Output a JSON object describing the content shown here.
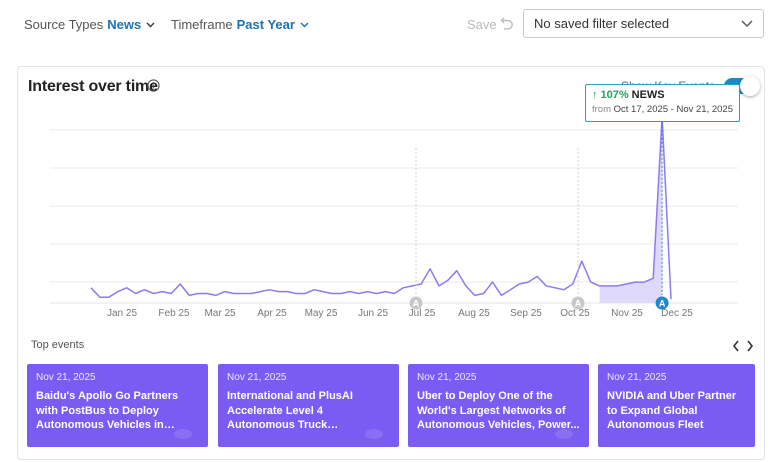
{
  "filters": {
    "source_label": "Source Types",
    "source_value": "News",
    "timeframe_label": "Timeframe",
    "timeframe_value": "Past Year"
  },
  "toolbar": {
    "save_label": "Save",
    "saved_filter_placeholder": "No saved filter selected"
  },
  "card": {
    "title": "Interest over time",
    "toggle_label": "Show Key Events",
    "toggle_on": true
  },
  "tooltip": {
    "pct": "107%",
    "source": "NEWS",
    "from_label": "from",
    "range": "Oct 17, 2025 - Nov 21, 2025"
  },
  "chart_data": {
    "type": "line",
    "x_tick_labels": [
      "Jan 25",
      "Feb 25",
      "Mar 25",
      "Apr 25",
      "May 25",
      "Jun 25",
      "Jul 25",
      "Aug 25",
      "Sep 25",
      "Oct 25",
      "Nov 25",
      "Dec 25"
    ],
    "series": [
      {
        "values": [
          8,
          3,
          3,
          6,
          8,
          5,
          7,
          5,
          6,
          5,
          10,
          4,
          5,
          5,
          4,
          6,
          5,
          5,
          5,
          6,
          7,
          6,
          6,
          5,
          5,
          7,
          6,
          5,
          5,
          6,
          5,
          6,
          5,
          6,
          5,
          8,
          9,
          10,
          18,
          9,
          12,
          17,
          9,
          4,
          5,
          11,
          4,
          7,
          10,
          11,
          14,
          9,
          8,
          7,
          10,
          22,
          11,
          9,
          9,
          9,
          10,
          11,
          11,
          13,
          98,
          2
        ],
        "color": "#8c7cf0"
      }
    ],
    "ylim": [
      0,
      100
    ],
    "grid": true,
    "shaded_range": "Oct 17, 2025 - Nov 21, 2025",
    "key_event_markers": [
      "Jul 25",
      "Oct 25",
      "Nov 21, 2025"
    ],
    "marker_icon": "a-marker-icon",
    "accent_color": "#1e88c9"
  },
  "top_events": {
    "title": "Top events",
    "items": [
      {
        "date": "Nov 21, 2025",
        "headline": "Baidu's Apollo Go Partners with PostBus to Deploy Autonomous Vehicles in Switzerland"
      },
      {
        "date": "Nov 21, 2025",
        "headline": "International and PlusAI Accelerate Level 4 Autonomous Truck Development Powered ..."
      },
      {
        "date": "Nov 21, 2025",
        "headline": "Uber to Deploy One of the World's Largest Networks of Autonomous Vehicles, Power..."
      },
      {
        "date": "Nov 21, 2025",
        "headline": "NVIDIA and Uber Partner to Expand Global Autonomous Fleet"
      }
    ]
  }
}
